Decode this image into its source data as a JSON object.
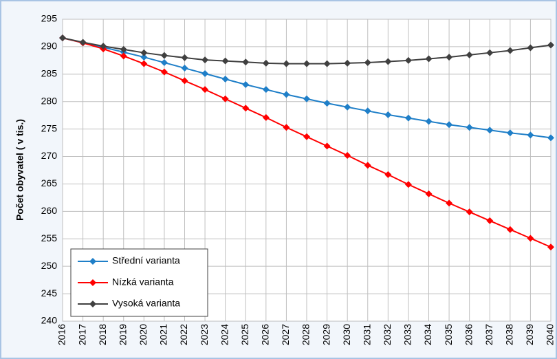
{
  "chart_data": {
    "type": "line",
    "y_label": "Počet obyvatel ( v tis.)",
    "categories": [
      "2016",
      "2017",
      "2018",
      "2019",
      "2020",
      "2021",
      "2022",
      "2023",
      "2024",
      "2025",
      "2026",
      "2027",
      "2028",
      "2029",
      "2030",
      "2031",
      "2032",
      "2033",
      "2034",
      "2035",
      "2036",
      "2037",
      "2038",
      "2039",
      "2040"
    ],
    "series": [
      {
        "name": "Střední varianta",
        "color": "#1f7fc8",
        "values": [
          291.6,
          290.7,
          289.9,
          289.0,
          288.1,
          287.1,
          286.1,
          285.1,
          284.1,
          283.1,
          282.2,
          281.3,
          280.5,
          279.7,
          279.0,
          278.3,
          277.6,
          277.0,
          276.4,
          275.8,
          275.3,
          274.8,
          274.3,
          273.9,
          273.4
        ]
      },
      {
        "name": "Nízká varianta",
        "color": "#ff0000",
        "values": [
          291.6,
          290.7,
          289.6,
          288.3,
          286.9,
          285.4,
          283.8,
          282.2,
          280.5,
          278.8,
          277.1,
          275.3,
          273.6,
          271.9,
          270.2,
          268.4,
          266.7,
          264.9,
          263.2,
          261.5,
          259.9,
          258.3,
          256.7,
          255.1,
          253.5
        ]
      },
      {
        "name": "Vysoká varianta",
        "color": "#404040",
        "values": [
          291.6,
          290.8,
          290.1,
          289.5,
          288.9,
          288.4,
          288.0,
          287.6,
          287.4,
          287.2,
          287.0,
          286.9,
          286.9,
          286.9,
          287.0,
          287.1,
          287.3,
          287.5,
          287.8,
          288.1,
          288.5,
          288.9,
          289.3,
          289.8,
          290.3
        ]
      }
    ],
    "ylim": [
      240,
      295
    ],
    "yticks": [
      240,
      245,
      250,
      255,
      260,
      265,
      270,
      275,
      280,
      285,
      290,
      295
    ],
    "grid": true,
    "legend": "bottom-left"
  }
}
